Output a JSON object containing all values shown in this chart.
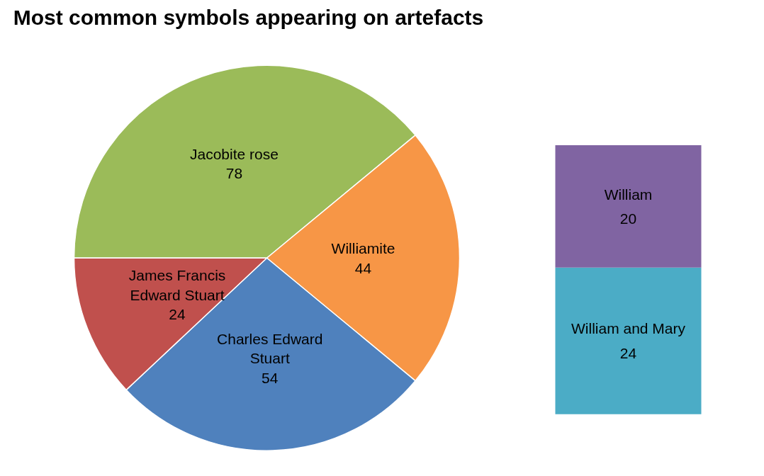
{
  "chart_data": [
    {
      "type": "pie",
      "title": "Most common symbols appearing on artefacts",
      "categories": [
        "Jacobite rose",
        "Williamite",
        "Charles Edward Stuart",
        "James Francis Edward Stuart"
      ],
      "values": [
        78,
        44,
        54,
        24
      ],
      "colors": [
        "#9bbb59",
        "#f79646",
        "#4f81bd",
        "#c0504d"
      ],
      "data_labels": true
    },
    {
      "type": "bar",
      "stacked": true,
      "categories": [
        null
      ],
      "series": [
        {
          "name": "William and Mary",
          "color": "#4bacc6",
          "values": [
            24
          ]
        },
        {
          "name": "William",
          "color": "#8064a2",
          "values": [
            20
          ]
        }
      ],
      "data_labels": true,
      "tick_labels": false
    }
  ]
}
